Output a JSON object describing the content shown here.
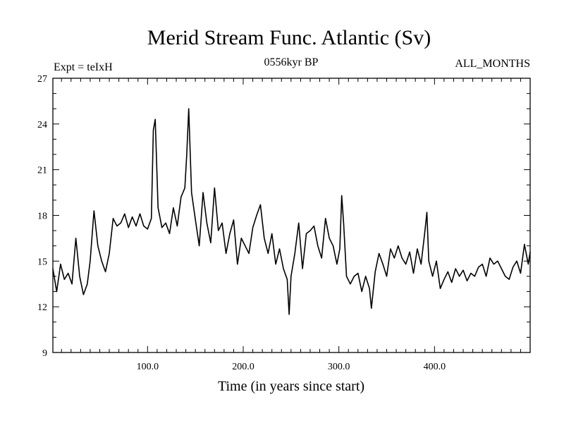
{
  "chart_data": {
    "type": "line",
    "title": "Merid Stream Func. Atlantic (Sv)",
    "subtitle": "0556kyr BP",
    "left_label": "Expt = teIxH",
    "right_label": "ALL_MONTHS",
    "xlabel": "Time (in years since start)",
    "ylabel": "",
    "xlim": [
      1,
      500
    ],
    "ylim": [
      9,
      27
    ],
    "xticks": [
      100,
      200,
      300,
      400
    ],
    "xtick_labels": [
      "100.0",
      "200.0",
      "300.0",
      "400.0"
    ],
    "yticks": [
      9,
      12,
      15,
      18,
      21,
      24,
      27
    ],
    "ytick_labels": [
      "9",
      "12",
      "15",
      "18",
      "21",
      "24",
      "27"
    ],
    "series": [
      {
        "name": "Merid Stream Func. Atlantic",
        "x": [
          1,
          5,
          9,
          13,
          17,
          21,
          25,
          29,
          33,
          37,
          40,
          44,
          48,
          52,
          56,
          60,
          64,
          68,
          72,
          76,
          80,
          84,
          88,
          92,
          96,
          100,
          104,
          106,
          108,
          111,
          115,
          119,
          123,
          127,
          131,
          135,
          139,
          141,
          143,
          146,
          150,
          154,
          158,
          162,
          166,
          170,
          174,
          178,
          182,
          186,
          190,
          194,
          198,
          202,
          206,
          210,
          214,
          218,
          222,
          226,
          230,
          234,
          238,
          242,
          246,
          248,
          250,
          254,
          258,
          262,
          266,
          270,
          274,
          278,
          282,
          286,
          290,
          294,
          298,
          301,
          303,
          305,
          308,
          312,
          316,
          320,
          324,
          328,
          332,
          334,
          338,
          342,
          346,
          350,
          354,
          358,
          362,
          366,
          370,
          374,
          378,
          382,
          386,
          390,
          392,
          394,
          398,
          402,
          406,
          410,
          414,
          418,
          422,
          426,
          430,
          434,
          438,
          442,
          446,
          450,
          454,
          458,
          462,
          466,
          470,
          474,
          478,
          482,
          486,
          490,
          494,
          498,
          500
        ],
        "values": [
          14.5,
          13.0,
          14.8,
          13.8,
          14.2,
          13.5,
          16.5,
          14.0,
          12.8,
          13.5,
          15.0,
          18.3,
          16.0,
          15.0,
          14.3,
          15.5,
          17.8,
          17.3,
          17.5,
          18.1,
          17.2,
          17.9,
          17.3,
          18.1,
          17.3,
          17.1,
          17.8,
          23.6,
          24.3,
          18.5,
          17.2,
          17.5,
          16.8,
          18.5,
          17.3,
          19.2,
          19.8,
          22.0,
          25.0,
          19.5,
          17.7,
          16.0,
          19.5,
          17.5,
          16.2,
          19.8,
          17.0,
          17.5,
          15.5,
          16.8,
          17.7,
          14.8,
          16.5,
          16.0,
          15.5,
          17.2,
          18.0,
          18.7,
          16.5,
          15.5,
          16.8,
          14.8,
          15.8,
          14.5,
          13.8,
          11.5,
          14.0,
          15.5,
          17.5,
          14.5,
          16.8,
          17.0,
          17.3,
          16.0,
          15.2,
          17.8,
          16.5,
          16.0,
          14.8,
          15.8,
          19.3,
          17.5,
          14.0,
          13.5,
          14.0,
          14.2,
          13.0,
          14.0,
          13.2,
          11.9,
          14.3,
          15.5,
          14.8,
          14.0,
          15.8,
          15.2,
          16.0,
          15.2,
          14.8,
          15.6,
          14.2,
          15.8,
          14.8,
          17.0,
          18.2,
          15.0,
          14.0,
          15.0,
          13.2,
          13.8,
          14.3,
          13.6,
          14.5,
          14.0,
          14.4,
          13.7,
          14.2,
          14.0,
          14.6,
          14.8,
          14.0,
          15.2,
          14.8,
          15.0,
          14.5,
          14.0,
          13.8,
          14.6,
          15.0,
          14.2,
          16.1,
          14.8,
          15.6
        ]
      }
    ]
  }
}
